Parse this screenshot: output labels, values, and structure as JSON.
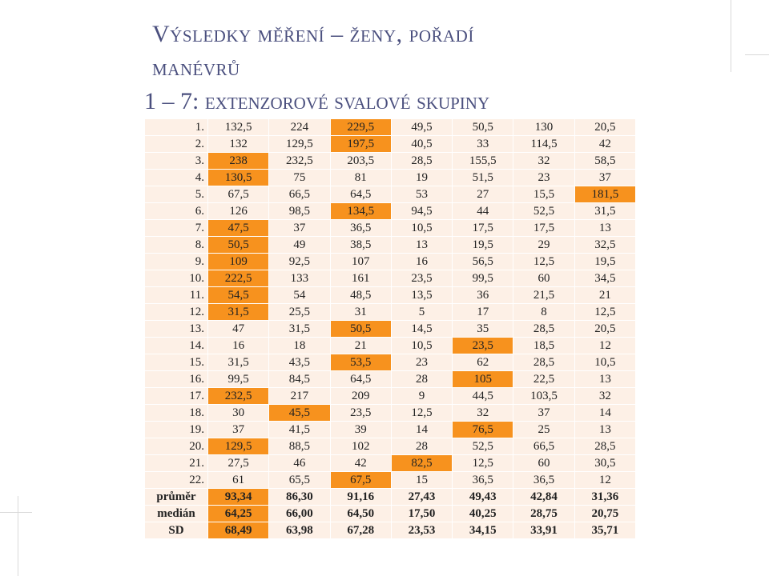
{
  "title_line1": "Výsledky měření – ženy, pořadí",
  "title_line2": "manévrů",
  "subtitle": "1 – 7: extenzorové svalové skupiny",
  "highlight_color": "#f7921e",
  "cell_color": "#fdf0e6",
  "title_color": "#4a4f7e",
  "rows": [
    {
      "label": "1.",
      "cells": [
        "132,5",
        "224",
        "229,5",
        "49,5",
        "50,5",
        "130",
        "20,5"
      ],
      "hi": [
        2
      ]
    },
    {
      "label": "2.",
      "cells": [
        "132",
        "129,5",
        "197,5",
        "40,5",
        "33",
        "114,5",
        "42"
      ],
      "hi": [
        2
      ]
    },
    {
      "label": "3.",
      "cells": [
        "238",
        "232,5",
        "203,5",
        "28,5",
        "155,5",
        "32",
        "58,5"
      ],
      "hi": [
        0
      ]
    },
    {
      "label": "4.",
      "cells": [
        "130,5",
        "75",
        "81",
        "19",
        "51,5",
        "23",
        "37"
      ],
      "hi": [
        0
      ]
    },
    {
      "label": "5.",
      "cells": [
        "67,5",
        "66,5",
        "64,5",
        "53",
        "27",
        "15,5",
        "181,5"
      ],
      "hi": [
        6
      ]
    },
    {
      "label": "6.",
      "cells": [
        "126",
        "98,5",
        "134,5",
        "94,5",
        "44",
        "52,5",
        "31,5"
      ],
      "hi": [
        2
      ]
    },
    {
      "label": "7.",
      "cells": [
        "47,5",
        "37",
        "36,5",
        "10,5",
        "17,5",
        "17,5",
        "13"
      ],
      "hi": [
        0
      ]
    },
    {
      "label": "8.",
      "cells": [
        "50,5",
        "49",
        "38,5",
        "13",
        "19,5",
        "29",
        "32,5"
      ],
      "hi": [
        0
      ]
    },
    {
      "label": "9.",
      "cells": [
        "109",
        "92,5",
        "107",
        "16",
        "56,5",
        "12,5",
        "19,5"
      ],
      "hi": [
        0
      ]
    },
    {
      "label": "10.",
      "cells": [
        "222,5",
        "133",
        "161",
        "23,5",
        "99,5",
        "60",
        "34,5"
      ],
      "hi": [
        0
      ]
    },
    {
      "label": "11.",
      "cells": [
        "54,5",
        "54",
        "48,5",
        "13,5",
        "36",
        "21,5",
        "21"
      ],
      "hi": [
        0
      ]
    },
    {
      "label": "12.",
      "cells": [
        "31,5",
        "25,5",
        "31",
        "5",
        "17",
        "8",
        "12,5"
      ],
      "hi": [
        0
      ]
    },
    {
      "label": "13.",
      "cells": [
        "47",
        "31,5",
        "50,5",
        "14,5",
        "35",
        "28,5",
        "20,5"
      ],
      "hi": [
        2
      ]
    },
    {
      "label": "14.",
      "cells": [
        "16",
        "18",
        "21",
        "10,5",
        "23,5",
        "18,5",
        "12"
      ],
      "hi": [
        4
      ]
    },
    {
      "label": "15.",
      "cells": [
        "31,5",
        "43,5",
        "53,5",
        "23",
        "62",
        "28,5",
        "10,5"
      ],
      "hi": [
        2
      ]
    },
    {
      "label": "16.",
      "cells": [
        "99,5",
        "84,5",
        "64,5",
        "28",
        "105",
        "22,5",
        "13"
      ],
      "hi": [
        4
      ]
    },
    {
      "label": "17.",
      "cells": [
        "232,5",
        "217",
        "209",
        "9",
        "44,5",
        "103,5",
        "32"
      ],
      "hi": [
        0
      ]
    },
    {
      "label": "18.",
      "cells": [
        "30",
        "45,5",
        "23,5",
        "12,5",
        "32",
        "37",
        "14"
      ],
      "hi": [
        1
      ]
    },
    {
      "label": "19.",
      "cells": [
        "37",
        "41,5",
        "39",
        "14",
        "76,5",
        "25",
        "13"
      ],
      "hi": [
        4
      ]
    },
    {
      "label": "20.",
      "cells": [
        "129,5",
        "88,5",
        "102",
        "28",
        "52,5",
        "66,5",
        "28,5"
      ],
      "hi": [
        0
      ]
    },
    {
      "label": "21.",
      "cells": [
        "27,5",
        "46",
        "42",
        "82,5",
        "12,5",
        "60",
        "30,5"
      ],
      "hi": [
        3
      ]
    },
    {
      "label": "22.",
      "cells": [
        "61",
        "65,5",
        "67,5",
        "15",
        "36,5",
        "36,5",
        "12"
      ],
      "hi": [
        2
      ]
    }
  ],
  "stats": [
    {
      "label": "průměr",
      "cells": [
        "93,34",
        "86,30",
        "91,16",
        "27,43",
        "49,43",
        "42,84",
        "31,36"
      ],
      "hi": [
        0
      ]
    },
    {
      "label": "medián",
      "cells": [
        "64,25",
        "66,00",
        "64,50",
        "17,50",
        "40,25",
        "28,75",
        "20,75"
      ],
      "hi": [
        0
      ]
    },
    {
      "label": "SD",
      "cells": [
        "68,49",
        "63,98",
        "67,28",
        "23,53",
        "34,15",
        "33,91",
        "35,71"
      ],
      "hi": [
        0
      ]
    }
  ]
}
